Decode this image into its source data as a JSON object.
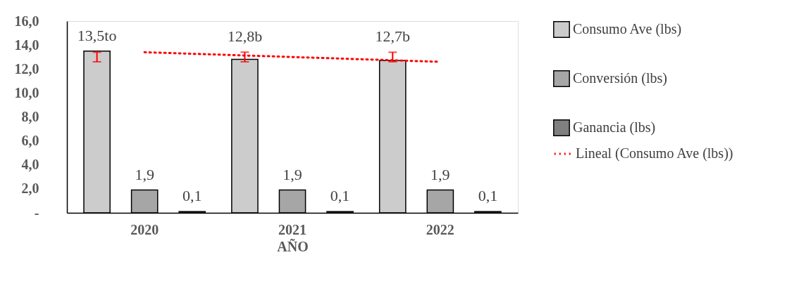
{
  "chart_data": {
    "type": "bar",
    "xlabel": "AÑO",
    "categories": [
      "2020",
      "2021",
      "2022"
    ],
    "series": [
      {
        "name": "Consumo Ave (lbs)",
        "color": "#cccccc",
        "values": [
          13.5,
          12.8,
          12.7
        ],
        "errors": [
          [
            12.6,
            13.4
          ],
          [
            12.6,
            13.4
          ],
          [
            12.6,
            13.4
          ]
        ],
        "value_labels": [
          "13,5to",
          "12,8b",
          "12,7b"
        ]
      },
      {
        "name": "Conversión (lbs)",
        "color": "#a6a6a6",
        "values": [
          1.9,
          1.9,
          1.9
        ],
        "value_labels": [
          "1,9",
          "1,9",
          "1,9"
        ]
      },
      {
        "name": "Ganancia (lbs)",
        "color": "#7f7f7f",
        "values": [
          0.1,
          0.1,
          0.1
        ],
        "value_labels": [
          "0,1",
          "0,1",
          "0,1"
        ]
      },
      {
        "name": "Lineal (Consumo Ave (lbs))",
        "type": "line",
        "color": "#ff0000",
        "line_style": "dotted",
        "values": [
          13.4,
          13.0,
          12.6
        ]
      }
    ],
    "ylim": [
      0,
      16
    ],
    "yticks": [
      {
        "value": 0,
        "label": "-"
      },
      {
        "value": 2,
        "label": "2,0"
      },
      {
        "value": 4,
        "label": "4,0"
      },
      {
        "value": 6,
        "label": "6,0"
      },
      {
        "value": 8,
        "label": "8,0"
      },
      {
        "value": 10,
        "label": "10,0"
      },
      {
        "value": 12,
        "label": "12,0"
      },
      {
        "value": 14,
        "label": "14,0"
      },
      {
        "value": 16,
        "label": "16,0"
      }
    ],
    "grid": false,
    "legend": "right"
  }
}
